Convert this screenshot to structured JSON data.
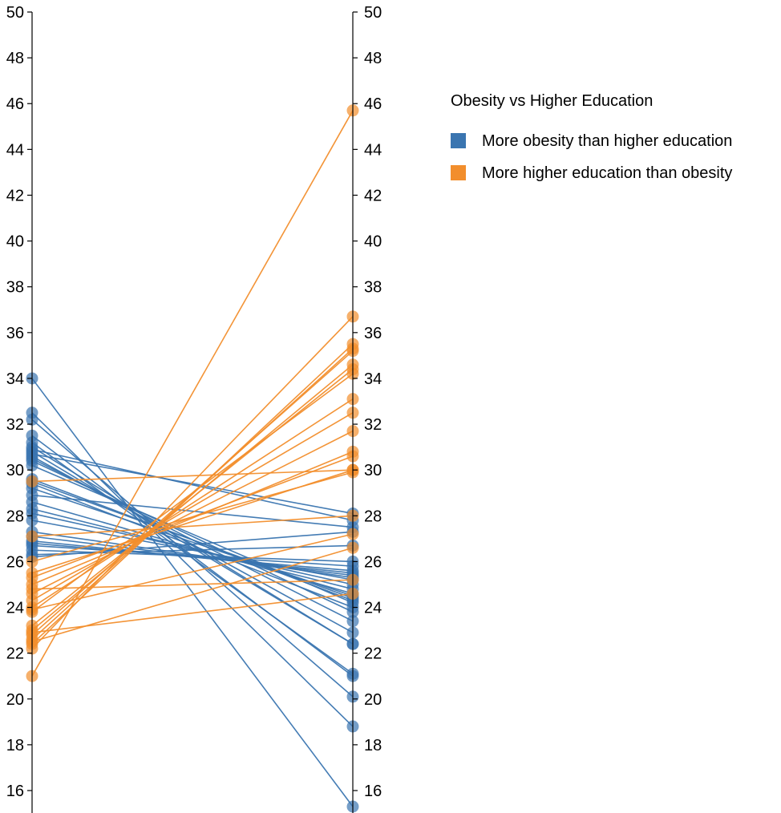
{
  "chart_data": {
    "type": "slope",
    "axes": {
      "left": {
        "ylim": [
          15,
          50
        ],
        "ticks": [
          16,
          18,
          20,
          22,
          24,
          26,
          28,
          30,
          32,
          34,
          36,
          38,
          40,
          42,
          44,
          46,
          48,
          50
        ]
      },
      "right": {
        "ylim": [
          15,
          50
        ],
        "ticks": [
          16,
          18,
          20,
          22,
          24,
          26,
          28,
          30,
          32,
          34,
          36,
          38,
          40,
          42,
          44,
          46,
          48,
          50
        ]
      }
    },
    "tick_labels": [
      "16",
      "18",
      "20",
      "22",
      "24",
      "26",
      "28",
      "30",
      "32",
      "34",
      "36",
      "38",
      "40",
      "42",
      "44",
      "46",
      "48",
      "50"
    ],
    "legend": {
      "title": "Obesity vs Higher Education",
      "placement": "top-right",
      "entries": [
        {
          "label": "More obesity than higher education",
          "color": "#3a75b0"
        },
        {
          "label": "More higher education than obesity",
          "color": "#f28e2c"
        }
      ]
    },
    "series": [
      {
        "color": "#3a75b0",
        "pairs": [
          [
            34.0,
            15.3
          ],
          [
            32.5,
            18.8
          ],
          [
            32.2,
            20.1
          ],
          [
            31.5,
            21.0
          ],
          [
            31.2,
            21.1
          ],
          [
            31.0,
            22.4
          ],
          [
            30.8,
            22.4
          ],
          [
            30.6,
            22.9
          ],
          [
            30.5,
            23.4
          ],
          [
            30.4,
            23.8
          ],
          [
            30.2,
            24.2
          ],
          [
            29.6,
            24.3
          ],
          [
            29.5,
            24.4
          ],
          [
            29.2,
            24.5
          ],
          [
            28.6,
            24.6
          ],
          [
            28.3,
            24.8
          ],
          [
            28.1,
            25.0
          ],
          [
            27.8,
            25.2
          ],
          [
            27.3,
            25.3
          ],
          [
            27.1,
            25.4
          ],
          [
            26.9,
            25.5
          ],
          [
            26.8,
            25.6
          ],
          [
            26.7,
            25.8
          ],
          [
            26.5,
            26.0
          ],
          [
            26.3,
            26.7
          ],
          [
            26.2,
            27.3
          ],
          [
            28.9,
            27.5
          ],
          [
            30.9,
            27.8
          ],
          [
            30.7,
            28.1
          ],
          [
            29.4,
            24.0
          ]
        ]
      },
      {
        "color": "#f28e2c",
        "pairs": [
          [
            21.0,
            45.7
          ],
          [
            22.2,
            36.7
          ],
          [
            22.4,
            35.5
          ],
          [
            22.6,
            35.3
          ],
          [
            22.8,
            35.2
          ],
          [
            23.0,
            34.6
          ],
          [
            23.2,
            34.4
          ],
          [
            23.8,
            34.2
          ],
          [
            24.0,
            33.1
          ],
          [
            24.3,
            32.5
          ],
          [
            24.6,
            31.7
          ],
          [
            25.0,
            30.8
          ],
          [
            25.3,
            30.6
          ],
          [
            25.5,
            30.0
          ],
          [
            26.0,
            29.9
          ],
          [
            29.5,
            30.0
          ],
          [
            27.1,
            28.0
          ],
          [
            23.9,
            27.2
          ],
          [
            22.5,
            26.6
          ],
          [
            24.8,
            25.2
          ],
          [
            22.9,
            24.6
          ]
        ]
      }
    ]
  }
}
